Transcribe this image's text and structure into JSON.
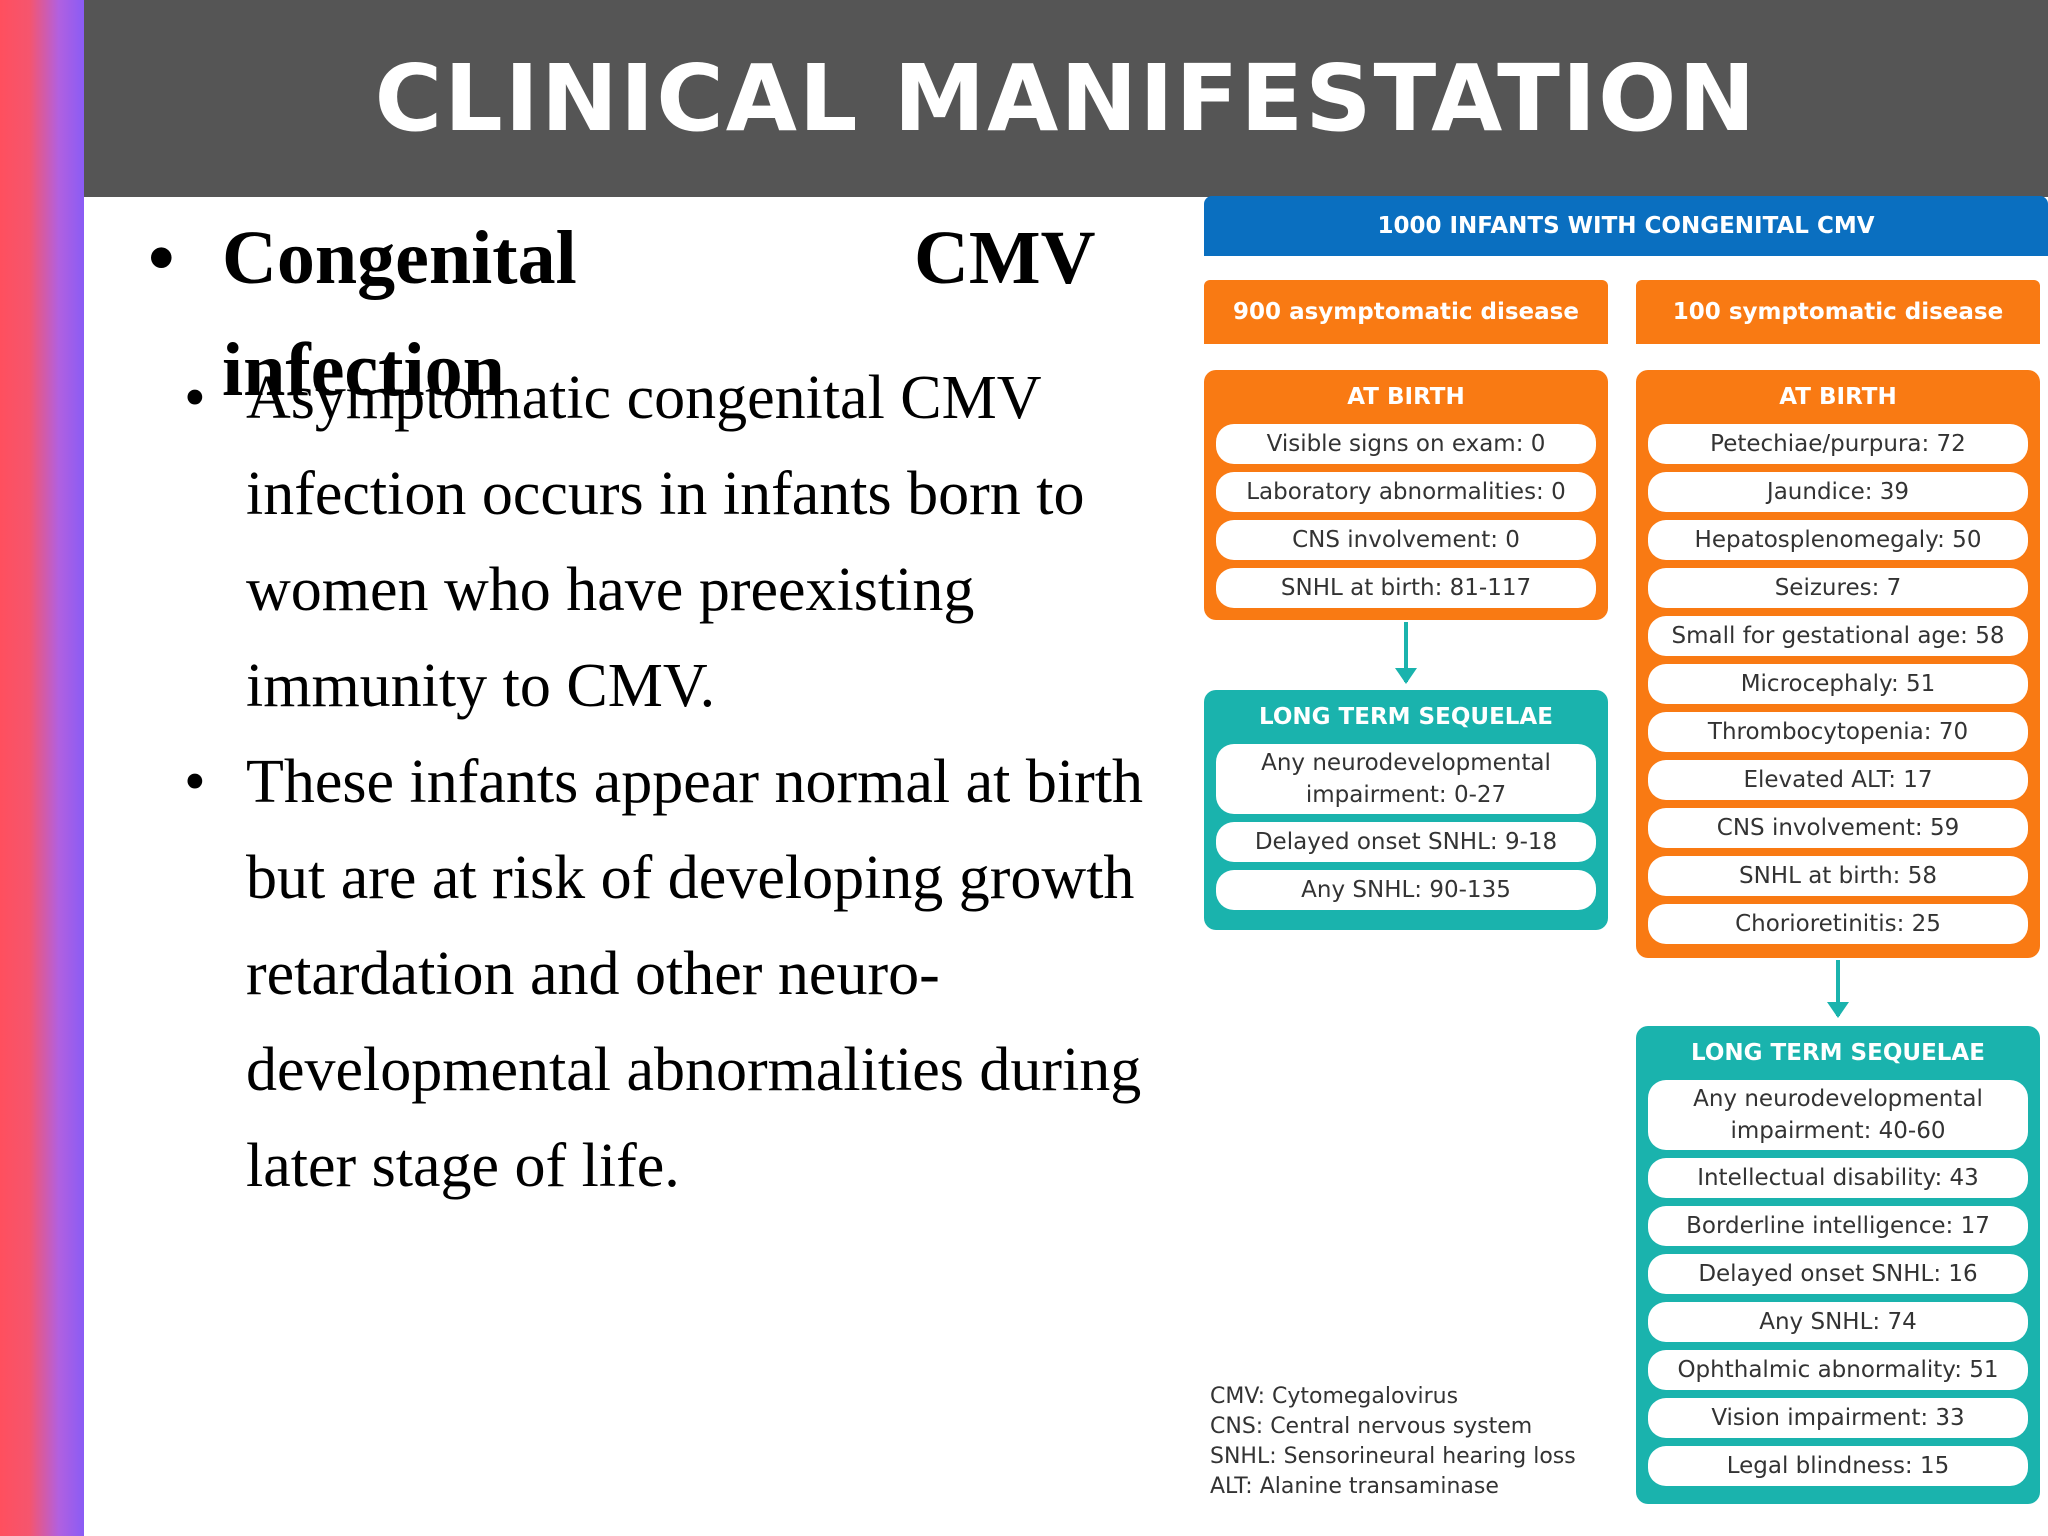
{
  "slide": {
    "title": "CLINICAL MANIFESTATION",
    "heading": {
      "bullet": "•",
      "word1": "Congenital",
      "word2": "CMV",
      "word3": "infection"
    },
    "bullets": [
      "Asymptomatic congenital CMV infection occurs in infants born to women who have preexisting immunity to CMV.",
      "These infants appear normal at birth but are at risk of developing growth retardation and other neuro-developmental abnormalities during later stage of life."
    ],
    "bullet_char": "•"
  },
  "diagram": {
    "banner": "1000 INFANTS WITH CONGENITAL CMV",
    "left_header": "900 asymptomatic disease",
    "right_header": "100 symptomatic disease",
    "left_birth": {
      "label": "AT BIRTH",
      "items": [
        "Visible signs on exam: 0",
        "Laboratory abnormalities: 0",
        "CNS involvement: 0",
        "SNHL at birth: 81-117"
      ]
    },
    "left_sequelae": {
      "label": "LONG TERM SEQUELAE",
      "items": [
        "Any neurodevelopmental impairment: 0-27",
        "Delayed onset SNHL: 9-18",
        "Any SNHL: 90-135"
      ]
    },
    "right_birth": {
      "label": "AT BIRTH",
      "items": [
        "Petechiae/purpura: 72",
        "Jaundice: 39",
        "Hepatosplenomegaly: 50",
        "Seizures: 7",
        "Small for gestational age: 58",
        "Microcephaly: 51",
        "Thrombocytopenia: 70",
        "Elevated ALT: 17",
        "CNS involvement: 59",
        "SNHL at birth: 58",
        "Chorioretinitis: 25"
      ]
    },
    "right_sequelae": {
      "label": "LONG TERM SEQUELAE",
      "items": [
        "Any neurodevelopmental impairment: 40-60",
        "Intellectual disability: 43",
        "Borderline intelligence: 17",
        "Delayed onset SNHL: 16",
        "Any SNHL: 74",
        "Ophthalmic abnormality: 51",
        "Vision impairment: 33",
        "Legal blindness: 15"
      ]
    },
    "footnotes": [
      "CMV: Cytomegalovirus",
      "CNS: Central nervous system",
      "SNHL: Sensorineural hearing loss",
      "ALT: Alanine transaminase"
    ],
    "colors": {
      "banner": "#0a6fc0",
      "orange": "#f97a13",
      "teal": "#1ab3ad"
    }
  }
}
